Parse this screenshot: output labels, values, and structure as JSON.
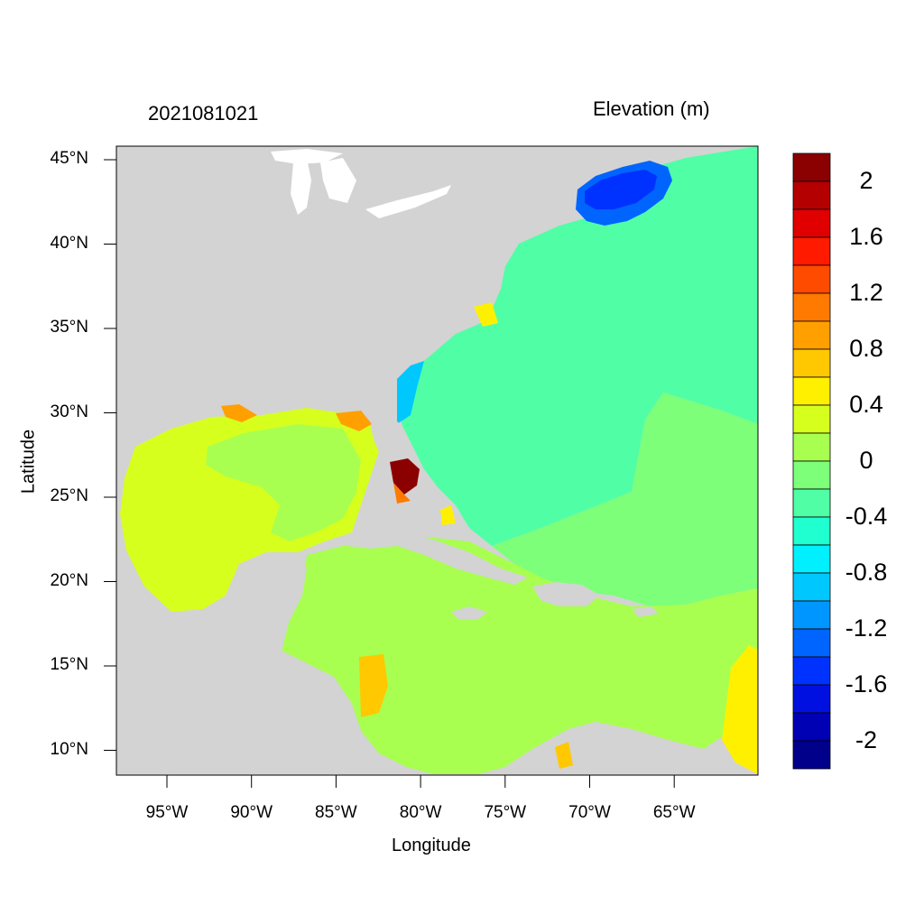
{
  "header": {
    "timestamp": "2021081021",
    "variable": "Elevation (m)"
  },
  "axes": {
    "xlabel": "Longitude",
    "ylabel": "Latitude",
    "lon_ticks": [
      "95°W",
      "90°W",
      "85°W",
      "80°W",
      "75°W",
      "70°W",
      "65°W"
    ],
    "lat_ticks": [
      "45°N",
      "40°N",
      "35°N",
      "30°N",
      "25°N",
      "20°N",
      "15°N",
      "10°N"
    ]
  },
  "colorbar": {
    "labels": [
      "2",
      "1.6",
      "1.2",
      "0.8",
      "0.4",
      "0",
      "-0.4",
      "-0.8",
      "-1.2",
      "-1.6",
      "-2"
    ],
    "colors": [
      "#8b0000",
      "#b40000",
      "#e00000",
      "#ff1a00",
      "#ff4b00",
      "#ff7a00",
      "#ffa000",
      "#ffc800",
      "#fff000",
      "#d7ff1e",
      "#a8ff50",
      "#7dff7a",
      "#50ffa5",
      "#20ffd0",
      "#00f0ff",
      "#00c8ff",
      "#0096ff",
      "#0064ff",
      "#0032ff",
      "#0010e0",
      "#0000b4",
      "#00008b"
    ]
  },
  "map": {
    "land_color": "#d3d3d3",
    "water_color": "#ffffff"
  }
}
